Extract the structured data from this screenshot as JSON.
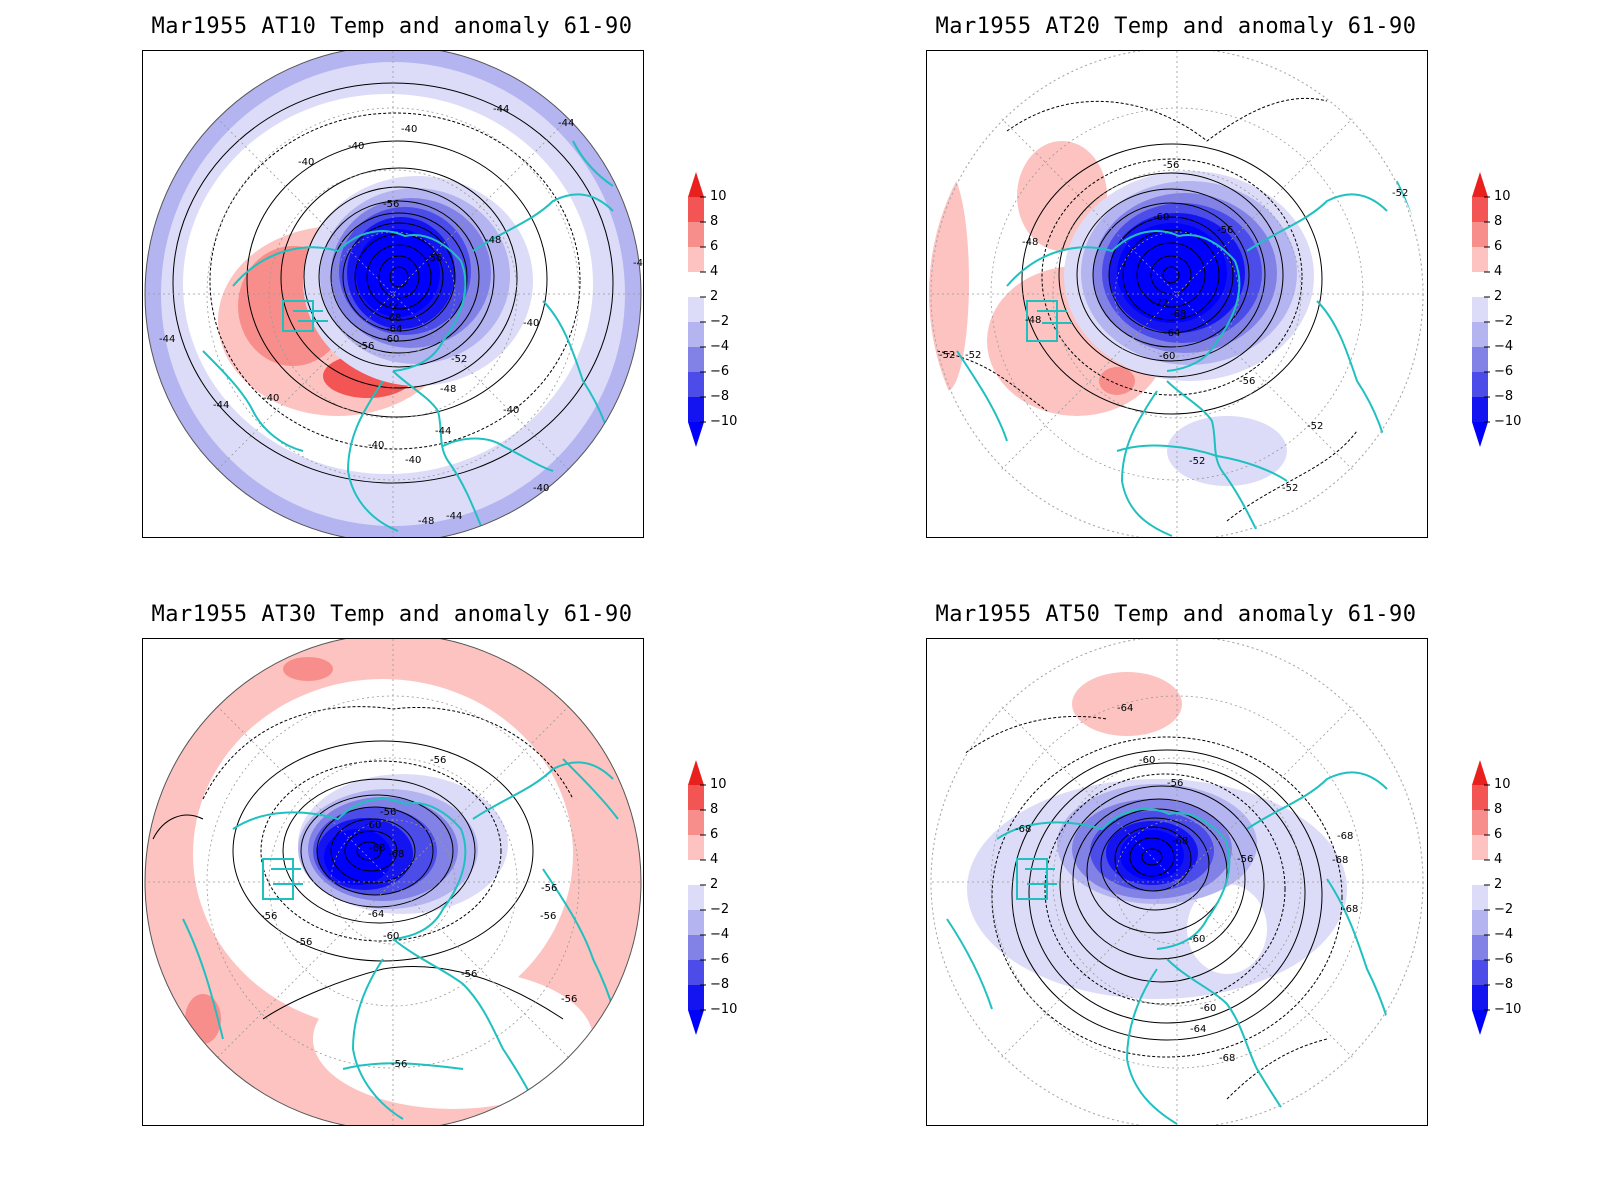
{
  "colorbar": {
    "levels": [
      "10",
      "8",
      "6",
      "4",
      "2",
      "−2",
      "−4",
      "−6",
      "−8",
      "−10"
    ],
    "colors": [
      "#e8201e",
      "#f25554",
      "#f88e8b",
      "#fcc3c1",
      "#ffffff",
      "#dcdcf8",
      "#b4b4f0",
      "#8181e6",
      "#4c4ce8",
      "#1414f0",
      "#0000ff"
    ]
  },
  "panels": [
    {
      "title": "Mar1955 AT10 Temp and anomaly 61-90",
      "contour_labels": [
        "-44",
        "-44",
        "-40",
        "-40",
        "-40",
        "-56",
        "-48",
        "-56",
        "-72",
        "-68",
        "-64",
        "-60",
        "-56",
        "-52",
        "-48",
        "-44",
        "-40",
        "-40",
        "-40",
        "-44",
        "-40",
        "-44",
        "-48",
        "-44",
        "-40",
        "-44",
        "-40"
      ]
    },
    {
      "title": "Mar1955 AT20 Temp and anomaly 61-90",
      "contour_labels": [
        "-56",
        "-60",
        "-56",
        "-48",
        "-48",
        "-52",
        "-52",
        "-72",
        "-68",
        "-64",
        "-60",
        "-56",
        "-52",
        "-52",
        "-52",
        "-52"
      ]
    },
    {
      "title": "Mar1955 AT30 Temp and anomaly 61-90",
      "contour_labels": [
        "-56",
        "-56",
        "-60",
        "-68",
        "-68",
        "-56",
        "-56",
        "-64",
        "-60",
        "-56",
        "-56",
        "-56",
        "-56",
        "-56"
      ]
    },
    {
      "title": "Mar1955 AT50 Temp and anomaly 61-90",
      "contour_labels": [
        "-64",
        "-60",
        "-56",
        "-68",
        "-68",
        "-68",
        "-68",
        "-56",
        "-60",
        "-60",
        "-64",
        "-68",
        "-68"
      ]
    }
  ]
}
